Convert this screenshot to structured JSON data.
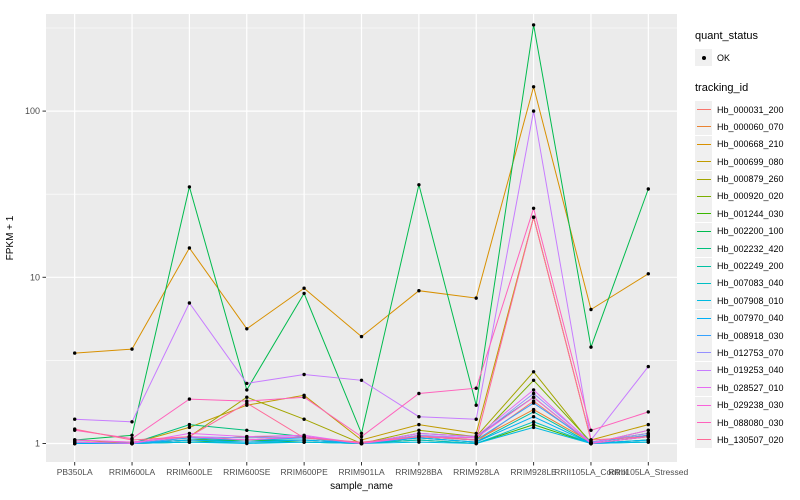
{
  "axes": {
    "y_title": "FPKM + 1",
    "x_title": "sample_name"
  },
  "legend": {
    "quant_status_title": "quant_status",
    "quant_status_items": [
      {
        "label": "OK",
        "marker": "point"
      }
    ],
    "tracking_title": "tracking_id"
  },
  "chart_data": {
    "type": "line",
    "title": "",
    "xlabel": "sample_name",
    "ylabel": "FPKM + 1",
    "y_scale": "log10",
    "ylim": [
      0.78,
      385
    ],
    "y_major_ticks": [
      1,
      10,
      100
    ],
    "y_minor_ticks": [
      3.162,
      31.62,
      316.2
    ],
    "grid": "white major and minor horizontal, major vertical per category",
    "panel_bg": "#EBEBEB",
    "point_color": "#000000",
    "legend_position": "right",
    "categories": [
      "PB350LA",
      "RRIM600LA",
      "RRIM600LE",
      "RRIM600SE",
      "RRIM600PE",
      "RRIM901LA",
      "RRIM928BA",
      "RRIM928LA",
      "RRIM928LE",
      "RRII105LA_Control",
      "RRII105LA_Stressed"
    ],
    "series": [
      {
        "name": "Hb_000031_200",
        "color": "#F8766D",
        "values": [
          1.02,
          1.0,
          1.05,
          1.02,
          1.05,
          1.0,
          1.08,
          1.02,
          1.8,
          1.0,
          1.1
        ]
      },
      {
        "name": "Hb_000060_070",
        "color": "#EA8331",
        "values": [
          1.0,
          1.0,
          1.08,
          1.05,
          1.1,
          1.0,
          1.12,
          1.05,
          1.6,
          1.02,
          1.12
        ]
      },
      {
        "name": "Hb_000668_210",
        "color": "#D89000",
        "values": [
          3.5,
          3.7,
          15.0,
          4.9,
          8.6,
          4.4,
          8.3,
          7.5,
          140.0,
          6.4,
          10.5
        ]
      },
      {
        "name": "Hb_000699_080",
        "color": "#C09B00",
        "values": [
          1.05,
          1.0,
          1.25,
          1.7,
          1.95,
          1.05,
          1.3,
          1.15,
          23.0,
          1.05,
          1.3
        ]
      },
      {
        "name": "Hb_000879_260",
        "color": "#A3A500",
        "values": [
          1.0,
          1.02,
          1.1,
          1.9,
          1.4,
          1.0,
          1.2,
          1.1,
          2.7,
          1.0,
          1.2
        ]
      },
      {
        "name": "Hb_000920_020",
        "color": "#7CAE00",
        "values": [
          1.0,
          1.0,
          1.05,
          1.1,
          1.08,
          1.0,
          1.1,
          1.05,
          2.4,
          1.02,
          1.15
        ]
      },
      {
        "name": "Hb_001244_030",
        "color": "#39B600",
        "values": [
          1.0,
          1.0,
          1.02,
          1.05,
          1.02,
          1.0,
          1.05,
          1.0,
          1.3,
          1.0,
          1.05
        ]
      },
      {
        "name": "Hb_002200_100",
        "color": "#00BB4E",
        "values": [
          1.05,
          1.12,
          35.0,
          2.1,
          8.0,
          1.15,
          36.0,
          1.7,
          330.0,
          3.8,
          34.0
        ]
      },
      {
        "name": "Hb_002232_420",
        "color": "#00BF7D",
        "values": [
          1.02,
          1.0,
          1.3,
          1.2,
          1.1,
          1.0,
          1.15,
          1.1,
          1.9,
          1.0,
          1.1
        ]
      },
      {
        "name": "Hb_002249_200",
        "color": "#00C1A3",
        "values": [
          1.0,
          1.0,
          1.05,
          1.05,
          1.05,
          1.0,
          1.08,
          1.02,
          1.55,
          1.0,
          1.05
        ]
      },
      {
        "name": "Hb_007083_040",
        "color": "#00BFC4",
        "values": [
          1.0,
          1.0,
          1.02,
          1.02,
          1.02,
          1.0,
          1.05,
          1.0,
          1.35,
          1.0,
          1.02
        ]
      },
      {
        "name": "Hb_007908_010",
        "color": "#00BAE0",
        "values": [
          1.0,
          1.0,
          1.02,
          1.0,
          1.02,
          1.0,
          1.02,
          1.0,
          1.25,
          1.0,
          1.02
        ]
      },
      {
        "name": "Hb_007970_040",
        "color": "#00B0F6",
        "values": [
          1.0,
          1.0,
          1.05,
          1.02,
          1.05,
          1.0,
          1.08,
          1.02,
          1.45,
          1.0,
          1.05
        ]
      },
      {
        "name": "Hb_008918_030",
        "color": "#35A2FF",
        "values": [
          1.02,
          1.0,
          1.08,
          1.05,
          1.08,
          1.0,
          1.1,
          1.05,
          1.75,
          1.02,
          1.12
        ]
      },
      {
        "name": "Hb_012753_070",
        "color": "#9590FF",
        "values": [
          1.05,
          1.02,
          1.1,
          1.08,
          1.1,
          1.0,
          1.12,
          1.08,
          2.0,
          1.02,
          1.15
        ]
      },
      {
        "name": "Hb_019253_040",
        "color": "#C77CFF",
        "values": [
          1.4,
          1.35,
          7.0,
          2.3,
          2.6,
          2.4,
          1.45,
          1.4,
          100.0,
          1.05,
          2.9
        ]
      },
      {
        "name": "Hb_028527_010",
        "color": "#E76BF3",
        "values": [
          1.02,
          1.0,
          1.15,
          1.1,
          1.12,
          1.0,
          1.15,
          1.1,
          2.1,
          1.0,
          1.2
        ]
      },
      {
        "name": "Hb_029238_030",
        "color": "#FA62DB",
        "values": [
          1.05,
          1.02,
          1.1,
          1.05,
          1.1,
          1.0,
          1.1,
          1.08,
          1.9,
          1.0,
          1.1
        ]
      },
      {
        "name": "Hb_088080_030",
        "color": "#FF62BC",
        "values": [
          1.2,
          1.07,
          1.85,
          1.8,
          1.9,
          1.1,
          2.0,
          2.15,
          26.0,
          1.2,
          1.55
        ]
      },
      {
        "name": "Hb_130507_020",
        "color": "#FF6A98",
        "values": [
          1.22,
          1.05,
          1.1,
          1.75,
          1.08,
          1.02,
          1.1,
          1.05,
          23.0,
          1.05,
          1.1
        ]
      }
    ]
  }
}
